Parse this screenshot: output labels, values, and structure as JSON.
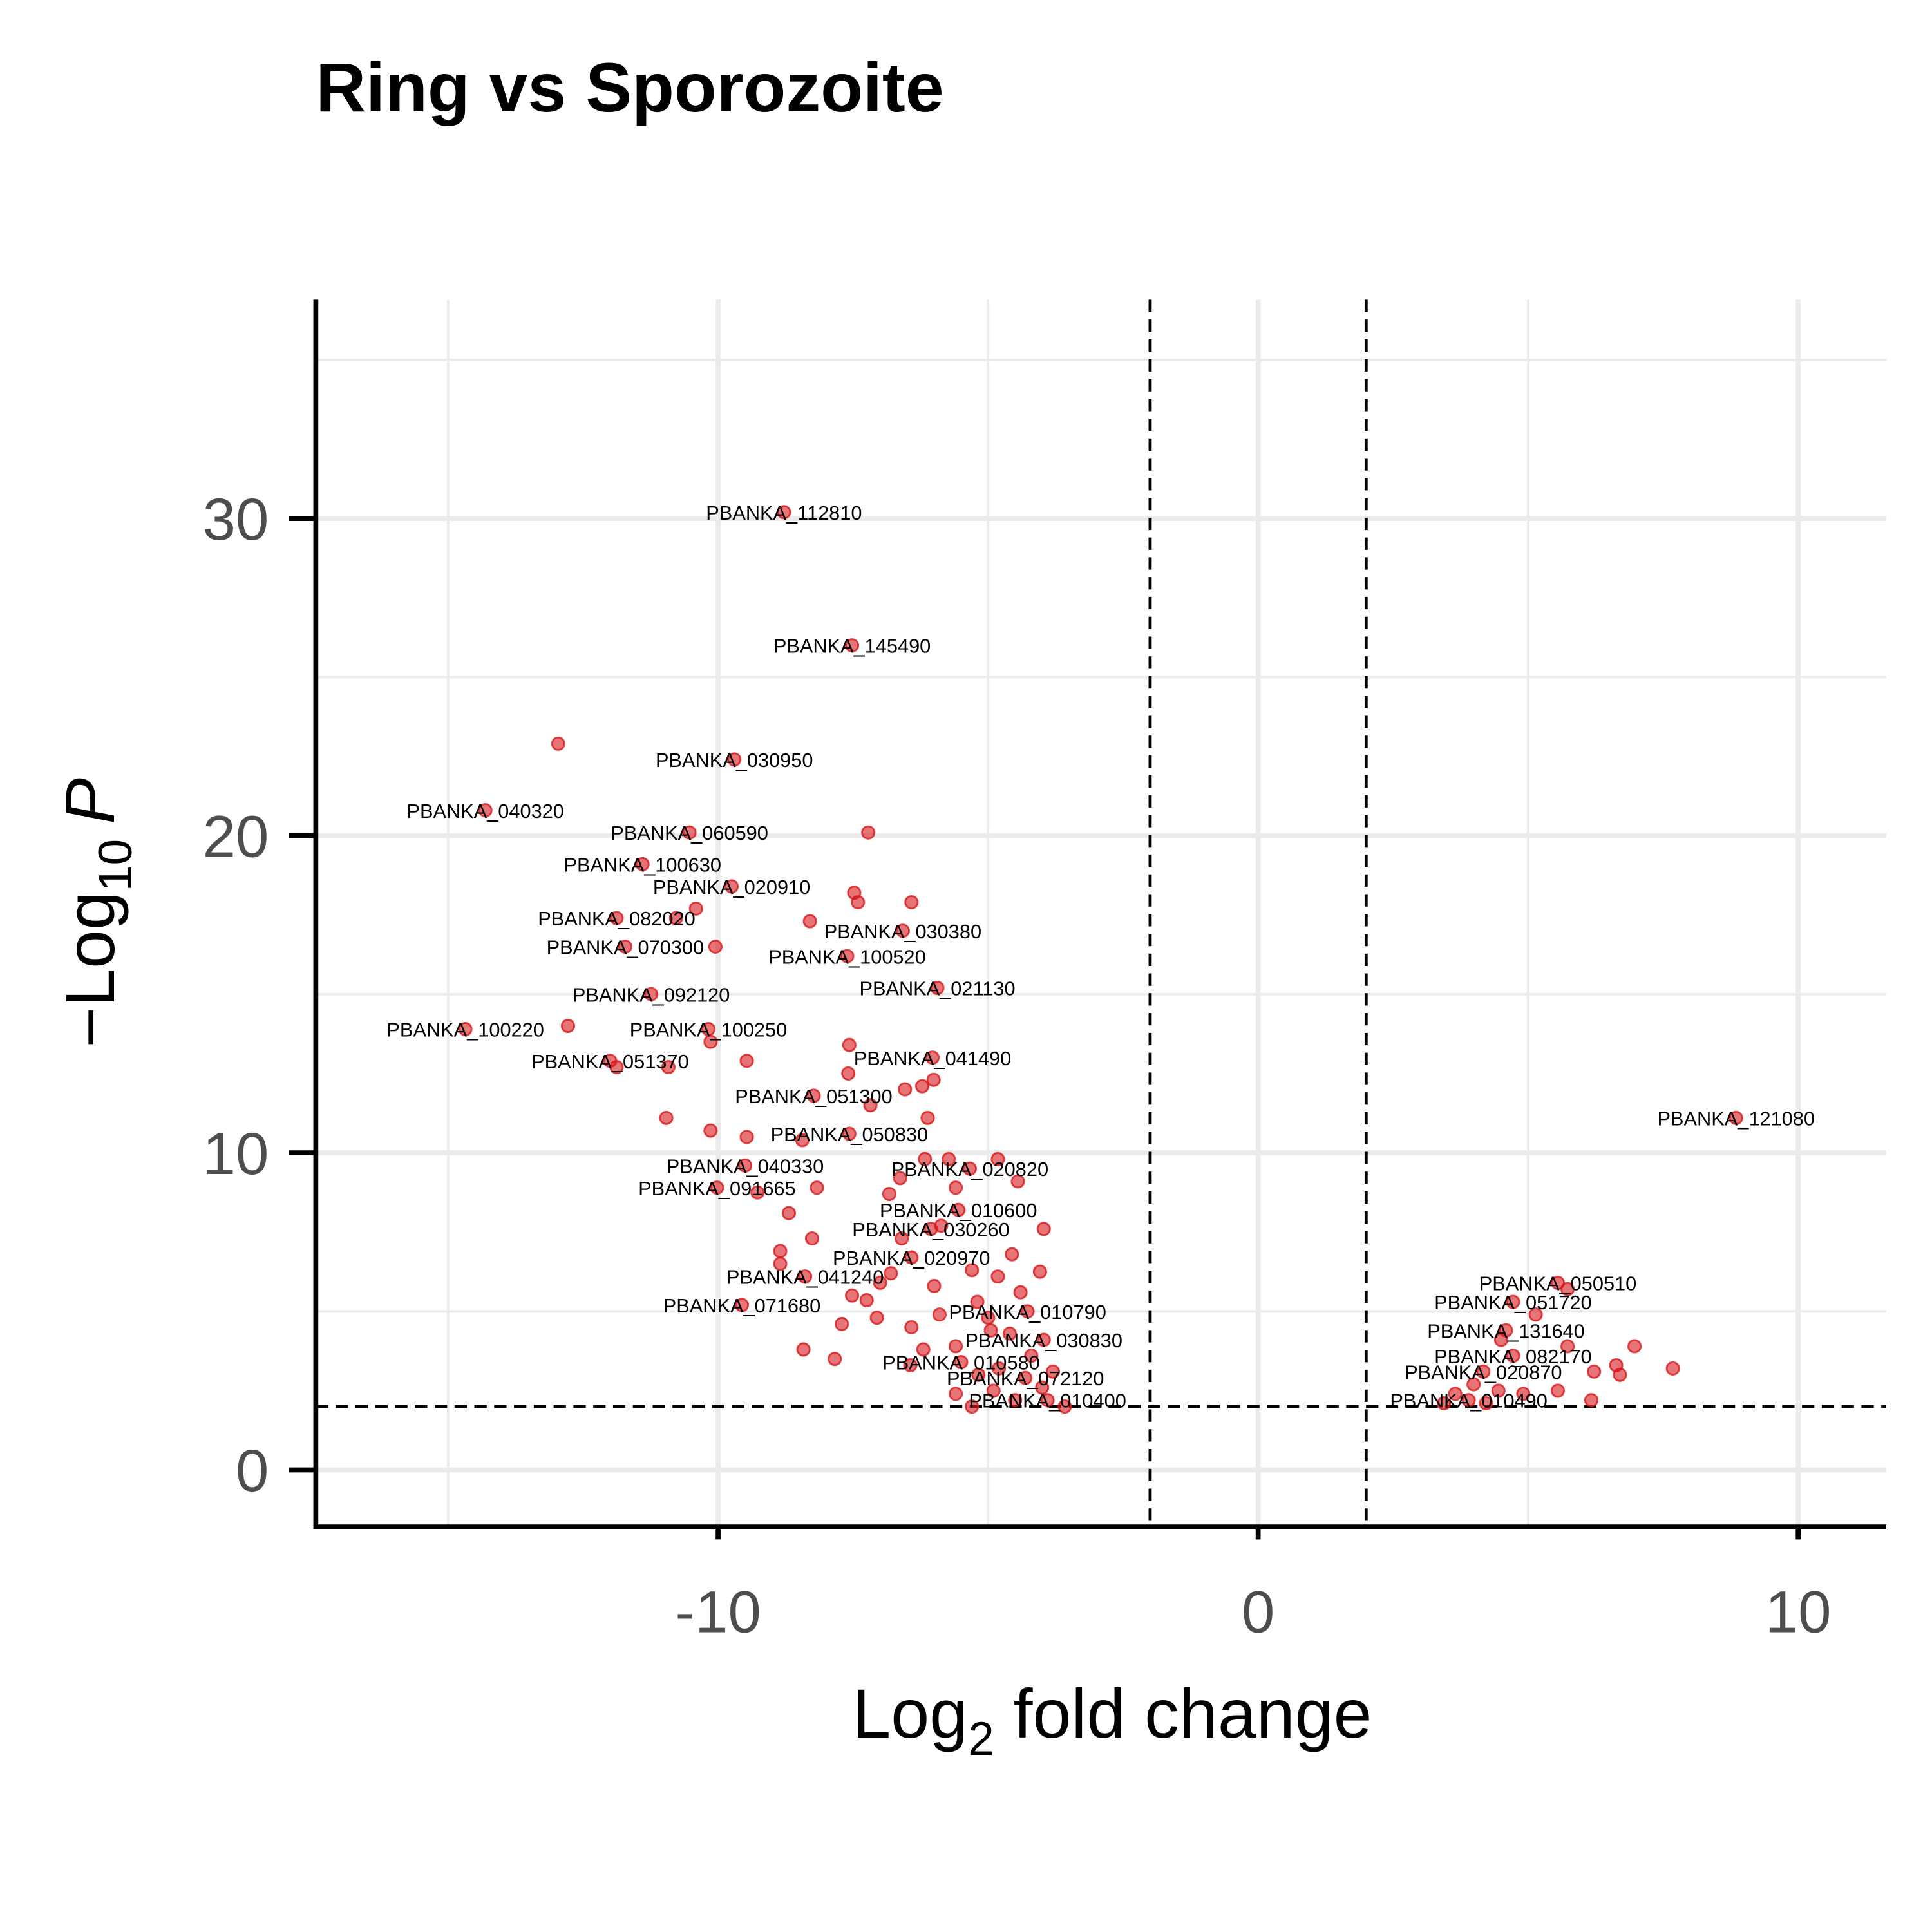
{
  "chart_data": {
    "type": "scatter",
    "title": "Ring vs Sporozoite",
    "x_label": {
      "main": "Log",
      "sub": "2",
      "rest": " fold change"
    },
    "y_label": {
      "main": "−Log",
      "sub": "10",
      "symbol": "P"
    },
    "xlim": [
      -17.45,
      11.63
    ],
    "ylim": [
      -1.8,
      36.9
    ],
    "xticks": [
      -10,
      0,
      10
    ],
    "yticks": [
      0,
      10,
      20,
      30
    ],
    "minor_grid_x": [
      -15,
      -5,
      5
    ],
    "minor_grid_y": [
      5,
      15,
      25,
      35
    ],
    "grid": true,
    "fold_change_cutoffs": [
      -2,
      2
    ],
    "p_cutoff": 2,
    "color": "#d7191c",
    "alpha": 0.6,
    "x": [
      -8.78,
      -7.52,
      -12.96,
      -9.7,
      -14.31,
      -10.53,
      -7.22,
      -11.4,
      -9.75,
      -7.48,
      -7.41,
      -6.42,
      -11.88,
      -10.41,
      -10.78,
      -6.58,
      -8.3,
      -11.72,
      -10.05,
      -7.61,
      -5.94,
      -11.24,
      -14.68,
      -12.78,
      -10.18,
      -10.14,
      -7.57,
      -12.0,
      -11.88,
      -10.92,
      -9.47,
      -6.03,
      -7.59,
      -6.01,
      -6.22,
      -6.54,
      -8.23,
      -7.18,
      -10.96,
      -6.12,
      -7.57,
      -10.14,
      -9.47,
      -8.44,
      -9.5,
      -5.34,
      -6.17,
      -5.73,
      -4.82,
      -10.02,
      -9.27,
      -8.17,
      -4.45,
      -5.6,
      -5.55,
      -6.63,
      -6.83,
      -8.69,
      -5.87,
      -6.06,
      -3.97,
      -8.26,
      -6.42,
      -4.56,
      -8.85,
      -8.39,
      -8.85,
      -4.04,
      -9.56,
      -7.52,
      -7.25,
      -4.82,
      -4.27,
      -7.71,
      -7.06,
      -6.42,
      -3.97,
      -4.95,
      -5.5,
      -8.42,
      -7.84,
      -6.44,
      -4.31,
      -5.18,
      -3.9,
      -5.3,
      -4.5,
      -3.58,
      -5.0,
      -4.6,
      -4.2,
      -5.6,
      -4.8,
      -4.0,
      -6.0,
      -5.3,
      -6.8,
      -5.9,
      -4.4,
      -3.8,
      -4.9,
      -5.6,
      -6.2,
      -7.0,
      -6.6,
      -5.2,
      8.85,
      5.55,
      5.73,
      4.72,
      5.14,
      4.59,
      4.5,
      6.97,
      5.73,
      4.72,
      6.63,
      7.68,
      6.22,
      6.7,
      4.17,
      5.55,
      3.99,
      3.9,
      3.44,
      4.22,
      6.17,
      4.91,
      3.65,
      4.45
    ],
    "y": [
      30.2,
      26.0,
      22.9,
      22.4,
      20.8,
      20.1,
      20.1,
      19.1,
      18.4,
      18.2,
      17.9,
      17.9,
      17.4,
      17.7,
      17.4,
      17.0,
      17.3,
      16.5,
      16.5,
      16.2,
      15.2,
      15.0,
      13.9,
      14.0,
      13.9,
      13.5,
      13.4,
      12.9,
      12.7,
      12.7,
      12.9,
      13.0,
      12.5,
      12.3,
      12.1,
      12.0,
      11.8,
      11.5,
      11.1,
      11.1,
      10.6,
      10.7,
      10.5,
      10.4,
      9.6,
      9.5,
      9.8,
      9.8,
      9.8,
      8.9,
      8.75,
      8.9,
      9.1,
      8.9,
      8.2,
      9.2,
      8.7,
      8.1,
      7.7,
      7.6,
      7.6,
      7.3,
      6.7,
      6.8,
      6.9,
      6.1,
      6.5,
      6.25,
      5.2,
      5.5,
      5.35,
      6.1,
      5.0,
      4.6,
      4.8,
      4.5,
      4.1,
      4.4,
      3.4,
      3.8,
      3.5,
      3.3,
      2.9,
      3.0,
      2.2,
      2.0,
      2.2,
      2.0,
      4.8,
      4.3,
      3.6,
      3.9,
      3.2,
      2.6,
      5.8,
      6.3,
      6.2,
      4.9,
      5.6,
      3.1,
      2.5,
      2.4,
      3.8,
      5.9,
      7.3,
      5.3,
      11.1,
      5.9,
      5.7,
      5.3,
      4.9,
      4.4,
      4.1,
      3.9,
      3.9,
      3.6,
      3.3,
      3.2,
      3.1,
      3.0,
      3.1,
      2.5,
      2.7,
      2.2,
      2.1,
      2.1,
      2.2,
      2.4,
      2.4,
      2.5
    ],
    "labels": [
      "PBANKA_112810",
      "PBANKA_145490",
      null,
      "PBANKA_030950",
      "PBANKA_040320",
      "PBANKA_060590",
      null,
      "PBANKA_100630",
      "PBANKA_020910",
      null,
      null,
      null,
      "PBANKA_082020",
      null,
      null,
      "PBANKA_030380",
      null,
      "PBANKA_070300",
      null,
      "PBANKA_100520",
      "PBANKA_021130",
      "PBANKA_092120",
      "PBANKA_100220",
      null,
      "PBANKA_100250",
      null,
      null,
      "PBANKA_051370",
      null,
      null,
      null,
      "PBANKA_041490",
      null,
      null,
      null,
      null,
      "PBANKA_051300",
      null,
      null,
      null,
      "PBANKA_050830",
      null,
      null,
      null,
      "PBANKA_040330",
      "PBANKA_020820",
      null,
      null,
      null,
      "PBANKA_091665",
      null,
      null,
      null,
      null,
      "PBANKA_010600",
      null,
      null,
      null,
      null,
      "PBANKA_030260",
      null,
      null,
      "PBANKA_020970",
      null,
      null,
      "PBANKA_041240",
      null,
      null,
      "PBANKA_071680",
      null,
      null,
      null,
      "PBANKA_010790",
      null,
      null,
      null,
      "PBANKA_030830",
      null,
      "PBANKA_010580",
      null,
      null,
      null,
      "PBANKA_072120",
      null,
      "PBANKA_010400",
      null,
      null,
      null,
      null,
      null,
      null,
      null,
      null,
      null,
      null,
      null,
      null,
      null,
      null,
      null,
      null,
      null,
      null,
      null,
      null,
      null,
      "PBANKA_121080",
      "PBANKA_050510",
      null,
      "PBANKA_051720",
      null,
      "PBANKA_131640",
      null,
      null,
      null,
      "PBANKA_082170",
      null,
      null,
      null,
      null,
      "PBANKA_020870",
      null,
      null,
      "PBANKA_010490",
      null,
      null,
      null,
      null,
      null,
      null
    ]
  }
}
